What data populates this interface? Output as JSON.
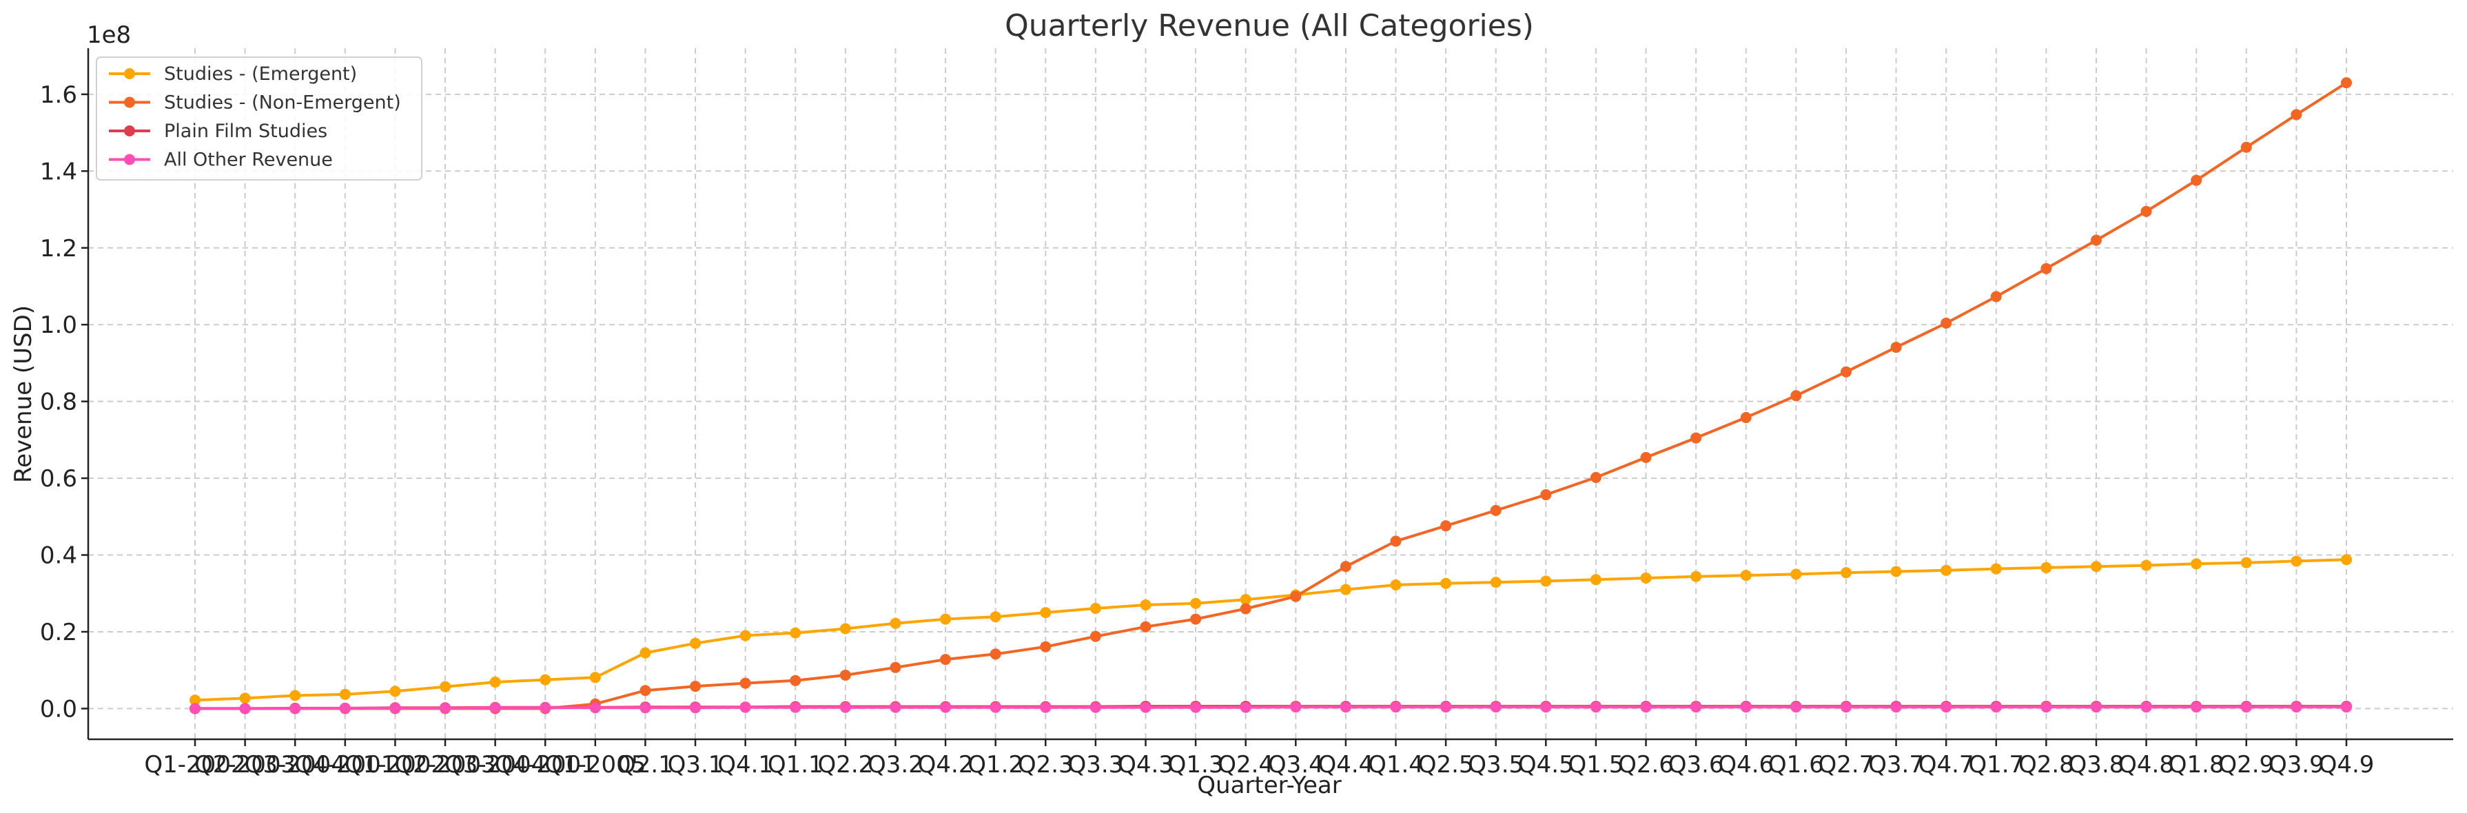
{
  "chart_data": {
    "type": "line",
    "title": "Quarterly Revenue (All Categories)",
    "xlabel": "Quarter-Year",
    "ylabel": "Revenue (USD)",
    "y_offset_label": "1e8",
    "ylim": [
      -0.08,
      1.72
    ],
    "y_ticks": [
      0.0,
      0.2,
      0.4,
      0.6,
      0.8,
      1.0,
      1.2,
      1.4,
      1.6
    ],
    "y_tick_labels": [
      "0.0",
      "0.2",
      "0.4",
      "0.6",
      "0.8",
      "1.0",
      "1.2",
      "1.4",
      "1.6"
    ],
    "grid": true,
    "legend_position": "top-left",
    "categories": [
      "Q1-2002",
      "Q2-2003",
      "Q3-2004",
      "Q4-2001",
      "Q1-2002",
      "Q2-2003",
      "Q3-2004",
      "Q4-2001",
      "Q1-2005",
      "Q2.1",
      "Q3.1",
      "Q4.1",
      "Q1.1",
      "Q2.2",
      "Q3.2",
      "Q4.2",
      "Q1.2",
      "Q2.3",
      "Q3.3",
      "Q4.3",
      "Q1.3",
      "Q2.4",
      "Q3.4",
      "Q4.4",
      "Q1.4",
      "Q2.5",
      "Q3.5",
      "Q4.5",
      "Q1.5",
      "Q2.6",
      "Q3.6",
      "Q4.6",
      "Q1.6",
      "Q2.7",
      "Q3.7",
      "Q4.7",
      "Q1.7",
      "Q2.8",
      "Q3.8",
      "Q4.8",
      "Q1.8",
      "Q2.9",
      "Q3.9",
      "Q4.9"
    ],
    "series": [
      {
        "name": "Studies - (Emergent)",
        "color": "#ffa500",
        "values": [
          0.022,
          0.027,
          0.034,
          0.037,
          0.045,
          0.057,
          0.069,
          0.075,
          0.081,
          0.145,
          0.17,
          0.19,
          0.197,
          0.208,
          0.222,
          0.233,
          0.239,
          0.25,
          0.261,
          0.27,
          0.274,
          0.284,
          0.296,
          0.31,
          0.322,
          0.326,
          0.329,
          0.332,
          0.336,
          0.34,
          0.344,
          0.347,
          0.35,
          0.354,
          0.357,
          0.36,
          0.364,
          0.367,
          0.37,
          0.373,
          0.377,
          0.38,
          0.384,
          0.388
        ]
      },
      {
        "name": "Studies - (Non-Emergent)",
        "color": "#f26522",
        "values": [
          0.0,
          0.0,
          0.0,
          0.0,
          0.0,
          0.0,
          0.0,
          0.0,
          0.012,
          0.047,
          0.058,
          0.066,
          0.073,
          0.087,
          0.107,
          0.128,
          0.142,
          0.161,
          0.188,
          0.213,
          0.233,
          0.26,
          0.292,
          0.37,
          0.436,
          0.476,
          0.516,
          0.557,
          0.602,
          0.654,
          0.705,
          0.758,
          0.815,
          0.877,
          0.941,
          1.004,
          1.073,
          1.146,
          1.22,
          1.295,
          1.376,
          1.462,
          1.547,
          1.63
        ]
      },
      {
        "name": "Plain Film Studies",
        "color": "#e03c4e",
        "values": [
          0.0,
          0.0,
          0.001,
          0.001,
          0.002,
          0.002,
          0.003,
          0.003,
          0.003,
          0.004,
          0.004,
          0.004,
          0.005,
          0.005,
          0.005,
          0.005,
          0.005,
          0.005,
          0.005,
          0.006,
          0.006,
          0.006,
          0.006,
          0.006,
          0.006,
          0.006,
          0.006,
          0.006,
          0.006,
          0.006,
          0.006,
          0.006,
          0.006,
          0.006,
          0.006,
          0.006,
          0.006,
          0.006,
          0.006,
          0.006,
          0.006,
          0.006,
          0.006,
          0.006
        ]
      },
      {
        "name": "All Other Revenue",
        "color": "#ff4fb4",
        "values": [
          0.0,
          0.0,
          0.0,
          0.001,
          0.001,
          0.001,
          0.002,
          0.002,
          0.002,
          0.002,
          0.002,
          0.003,
          0.003,
          0.003,
          0.003,
          0.003,
          0.003,
          0.003,
          0.003,
          0.003,
          0.003,
          0.003,
          0.004,
          0.004,
          0.004,
          0.004,
          0.004,
          0.004,
          0.004,
          0.004,
          0.004,
          0.004,
          0.004,
          0.004,
          0.004,
          0.004,
          0.004,
          0.004,
          0.004,
          0.004,
          0.004,
          0.004,
          0.004,
          0.004
        ]
      }
    ]
  }
}
